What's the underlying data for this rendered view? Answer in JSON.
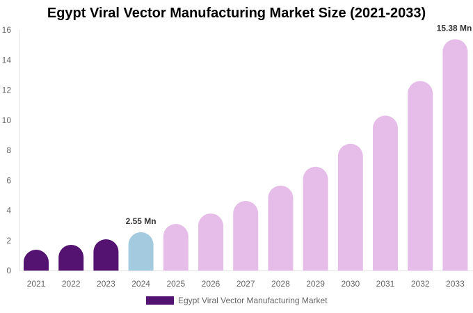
{
  "chart_data": {
    "type": "bar",
    "title": "Egypt Viral Vector Manufacturing Market Size (2021-2033)",
    "categories": [
      "2021",
      "2022",
      "2023",
      "2024",
      "2025",
      "2026",
      "2027",
      "2028",
      "2029",
      "2030",
      "2031",
      "2032",
      "2033"
    ],
    "series": [
      {
        "name": "Egypt Viral Vector Manufacturing Market",
        "values": [
          1.39,
          1.71,
          2.08,
          2.55,
          3.1,
          3.8,
          4.63,
          5.65,
          6.9,
          8.43,
          10.3,
          12.6,
          15.38
        ]
      }
    ],
    "data_labels": {
      "3": "2.55 Mn",
      "12": "15.38 Mn"
    },
    "ylim": [
      0,
      16
    ],
    "yticks": [
      0,
      2,
      4,
      6,
      8,
      10,
      12,
      14,
      16
    ],
    "grid": false,
    "legend_position": "bottom",
    "colors": {
      "historical": "#541371",
      "base_year": "#a4cadf",
      "forecast": "#e6bce8"
    }
  }
}
